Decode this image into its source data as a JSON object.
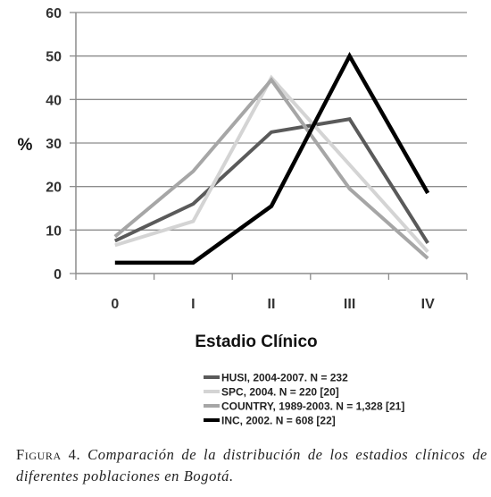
{
  "chart_data": {
    "type": "line",
    "categories": [
      "0",
      "I",
      "II",
      "III",
      "IV"
    ],
    "ylim": [
      0,
      60
    ],
    "yticks": [
      0,
      10,
      20,
      30,
      40,
      50,
      60
    ],
    "ylabel": "%",
    "xlabel": "Estadio Clínico",
    "grid": "horizontal",
    "legend_position": "bottom",
    "series": [
      {
        "name": "HUSI, 2004-2007. N = 232",
        "color": "#5a5a5a",
        "values": [
          7.5,
          16,
          32.5,
          35.5,
          7
        ]
      },
      {
        "name": "SPC, 2004. N = 220 [20]",
        "color": "#d4d4d4",
        "values": [
          6.5,
          12,
          45,
          25,
          5
        ]
      },
      {
        "name": "COUNTRY, 1989-2003. N = 1,328 [21]",
        "color": "#a6a6a6",
        "values": [
          8.5,
          23.5,
          44.5,
          19.5,
          3.5
        ]
      },
      {
        "name": "INC, 2002. N = 608 [22]",
        "color": "#000000",
        "values": [
          2.5,
          2.5,
          15.5,
          50,
          18.5
        ]
      }
    ]
  },
  "caption": {
    "label": "Figura 4.",
    "text": "Comparación de la distribución de los estadios clínicos de diferentes poblaciones en Bogotá."
  }
}
